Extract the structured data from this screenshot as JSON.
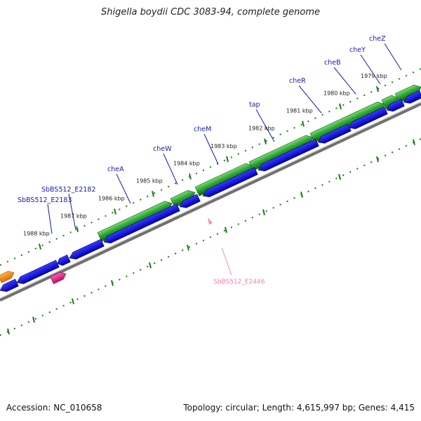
{
  "title": "Shigella boydii CDC 3083-94, complete genome",
  "footer": {
    "accession": "Accession: NC_010658",
    "summary": "Topology: circular; Length: 4,615,997 bp; Genes: 4,415"
  },
  "colors": {
    "forward_gene": "#2e9e2e",
    "reverse_gene": "#1010ee",
    "pseudo_gene": "#e0208a",
    "other_gene": "#f08a10",
    "gene_label": "#1a1aaa",
    "highlight_label": "#f080b0",
    "tick": "#1a7a1a"
  },
  "ruler": {
    "ticks": [
      "1979 kbp",
      "1980 kbp",
      "1981 kbp",
      "1982 kbp",
      "1983 kbp",
      "1984 kbp",
      "1985 kbp",
      "1986 kbp",
      "1987 kbp",
      "1988 kbp"
    ]
  },
  "genes": [
    {
      "label": "cheZ"
    },
    {
      "label": "cheY"
    },
    {
      "label": "cheB"
    },
    {
      "label": "cheR"
    },
    {
      "label": "tap"
    },
    {
      "label": "cheM"
    },
    {
      "label": "cheW"
    },
    {
      "label": "cheA"
    },
    {
      "label": "SbBS512_E2182"
    },
    {
      "label": "SbBS512_E2183"
    }
  ],
  "highlight": {
    "label": "SbBS512_E2446"
  }
}
